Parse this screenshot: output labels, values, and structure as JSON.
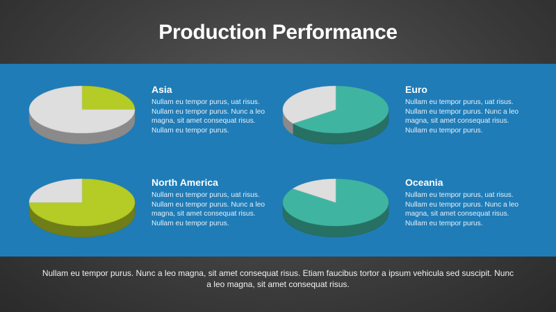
{
  "title": "Production Performance",
  "colors": {
    "band": "#1f7cb7",
    "lime": "#b4cc25",
    "teal": "#3fb5a1",
    "gray": "#dedede"
  },
  "chart_data": [
    {
      "type": "pie",
      "title": "Asia",
      "description": "Nullam eu tempor purus, uat risus. Nullam eu tempor purus. Nunc a leo magna, sit amet consequat risus. Nullam eu tempor purus.",
      "values": [
        {
          "value": 25,
          "color": "#b4cc25"
        },
        {
          "value": 75,
          "color": "#dedede"
        }
      ]
    },
    {
      "type": "pie",
      "title": "Euro",
      "description": "Nullam eu tempor purus, uat risus. Nullam eu tempor purus. Nunc a leo magna, sit amet consequat risus. Nullam eu tempor purus.",
      "values": [
        {
          "value": 65,
          "color": "#3fb5a1"
        },
        {
          "value": 35,
          "color": "#dedede"
        }
      ]
    },
    {
      "type": "pie",
      "title": "North America",
      "description": "Nullam eu tempor purus, uat risus. Nullam eu tempor purus. Nunc a leo magna, sit amet consequat risus. Nullam eu tempor purus.",
      "values": [
        {
          "value": 75,
          "color": "#b4cc25"
        },
        {
          "value": 25,
          "color": "#dedede"
        }
      ]
    },
    {
      "type": "pie",
      "title": "Oceania",
      "description": "Nullam eu tempor purus, uat risus. Nullam eu tempor purus. Nunc a leo magna, sit amet consequat risus. Nullam eu tempor purus.",
      "values": [
        {
          "value": 85,
          "color": "#3fb5a1"
        },
        {
          "value": 15,
          "color": "#dedede"
        }
      ]
    }
  ],
  "footer": "Nullam eu tempor purus. Nunc a leo magna, sit amet consequat risus. Etiam faucibus tortor a ipsum vehicula sed suscipit. Nunc a leo magna, sit amet consequat risus."
}
